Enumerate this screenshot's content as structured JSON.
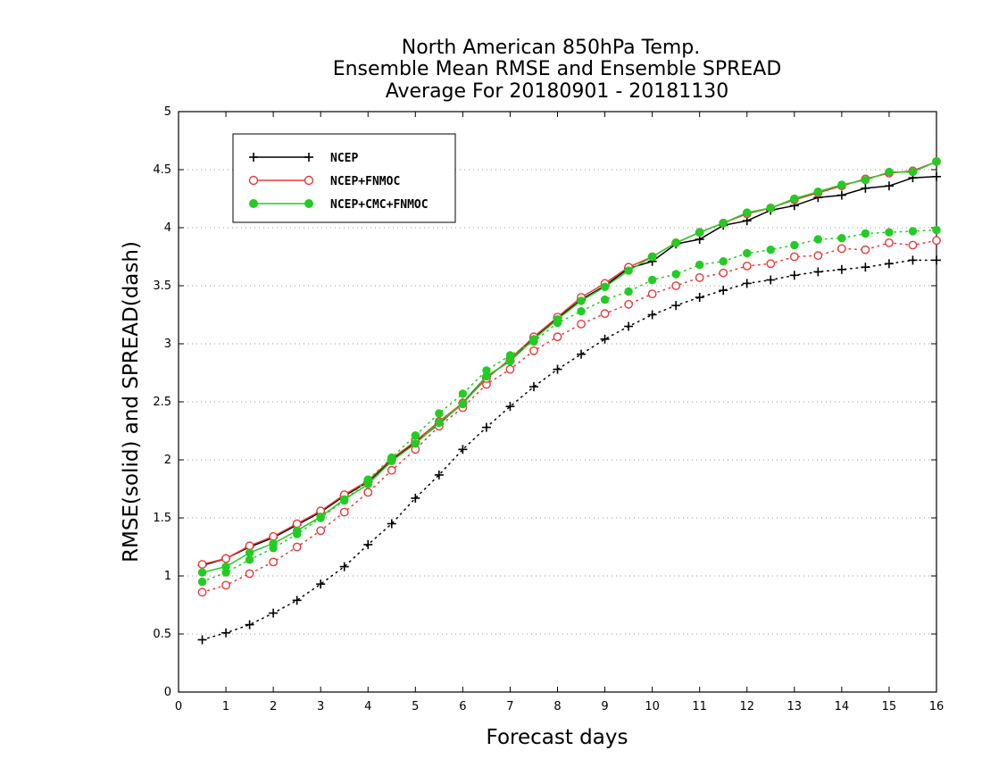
{
  "chart_data": {
    "type": "line",
    "title": [
      "North American 850hPa Temp.",
      "Ensemble Mean RMSE and Ensemble SPREAD",
      "Average For 20180901 - 20181130"
    ],
    "xlabel": "Forecast days",
    "ylabel": "RMSE(solid) and SPREAD(dash)",
    "xlim": [
      0,
      16
    ],
    "ylim": [
      0,
      5
    ],
    "xticks": [
      "0",
      "1",
      "2",
      "3",
      "4",
      "5",
      "6",
      "7",
      "8",
      "9",
      "10",
      "11",
      "12",
      "13",
      "14",
      "15",
      "16"
    ],
    "yticks": [
      "0",
      "0.5",
      "1",
      "1.5",
      "2",
      "2.5",
      "3",
      "3.5",
      "4",
      "4.5",
      "5"
    ],
    "grid": "horizontal dotted",
    "legend_position": "top-left",
    "x": [
      0.5,
      1,
      1.5,
      2,
      2.5,
      3,
      3.5,
      4,
      4.5,
      5,
      5.5,
      6,
      6.5,
      7,
      7.5,
      8,
      8.5,
      9,
      9.5,
      10,
      10.5,
      11,
      11.5,
      12,
      12.5,
      13,
      13.5,
      14,
      14.5,
      15,
      15.5,
      16
    ],
    "series": [
      {
        "name": "NCEP",
        "color": "#000000",
        "marker": "plus",
        "rmse": [
          1.09,
          1.15,
          1.25,
          1.33,
          1.44,
          1.55,
          1.69,
          1.81,
          2.0,
          2.15,
          2.31,
          2.49,
          2.72,
          2.85,
          3.05,
          3.22,
          3.38,
          3.5,
          3.65,
          3.71,
          3.86,
          3.9,
          4.02,
          4.06,
          4.15,
          4.19,
          4.26,
          4.28,
          4.34,
          4.36,
          4.43,
          4.44
        ],
        "spread": [
          0.45,
          0.51,
          0.58,
          0.68,
          0.79,
          0.93,
          1.08,
          1.27,
          1.45,
          1.67,
          1.87,
          2.09,
          2.28,
          2.46,
          2.63,
          2.78,
          2.91,
          3.04,
          3.15,
          3.25,
          3.33,
          3.4,
          3.46,
          3.52,
          3.55,
          3.59,
          3.62,
          3.64,
          3.66,
          3.69,
          3.72,
          3.72
        ]
      },
      {
        "name": "NCEP+FNMOC",
        "color": "#e83a3a",
        "marker": "open-circle",
        "rmse": [
          1.1,
          1.15,
          1.26,
          1.34,
          1.45,
          1.56,
          1.7,
          1.82,
          2.01,
          2.16,
          2.33,
          2.49,
          2.7,
          2.87,
          3.06,
          3.23,
          3.4,
          3.52,
          3.66,
          3.75,
          3.87,
          3.96,
          4.04,
          4.12,
          4.17,
          4.24,
          4.3,
          4.36,
          4.42,
          4.47,
          4.49,
          4.57
        ],
        "spread": [
          0.86,
          0.92,
          1.02,
          1.12,
          1.25,
          1.39,
          1.55,
          1.72,
          1.91,
          2.09,
          2.29,
          2.45,
          2.65,
          2.78,
          2.94,
          3.06,
          3.17,
          3.26,
          3.34,
          3.43,
          3.5,
          3.57,
          3.61,
          3.67,
          3.69,
          3.75,
          3.76,
          3.82,
          3.81,
          3.87,
          3.85,
          3.89
        ]
      },
      {
        "name": "NCEP+CMC+FNMOC",
        "color": "#22cc22",
        "marker": "filled-circle",
        "rmse": [
          1.03,
          1.08,
          1.2,
          1.28,
          1.39,
          1.51,
          1.66,
          1.79,
          1.99,
          2.14,
          2.32,
          2.48,
          2.72,
          2.85,
          3.04,
          3.21,
          3.37,
          3.49,
          3.63,
          3.75,
          3.87,
          3.96,
          4.04,
          4.13,
          4.17,
          4.25,
          4.31,
          4.37,
          4.41,
          4.48,
          4.48,
          4.57
        ],
        "spread": [
          0.95,
          1.03,
          1.14,
          1.24,
          1.36,
          1.5,
          1.65,
          1.83,
          2.02,
          2.21,
          2.4,
          2.57,
          2.77,
          2.9,
          3.02,
          3.18,
          3.28,
          3.38,
          3.45,
          3.55,
          3.6,
          3.68,
          3.71,
          3.78,
          3.81,
          3.85,
          3.9,
          3.91,
          3.95,
          3.96,
          3.97,
          3.98
        ]
      }
    ]
  }
}
